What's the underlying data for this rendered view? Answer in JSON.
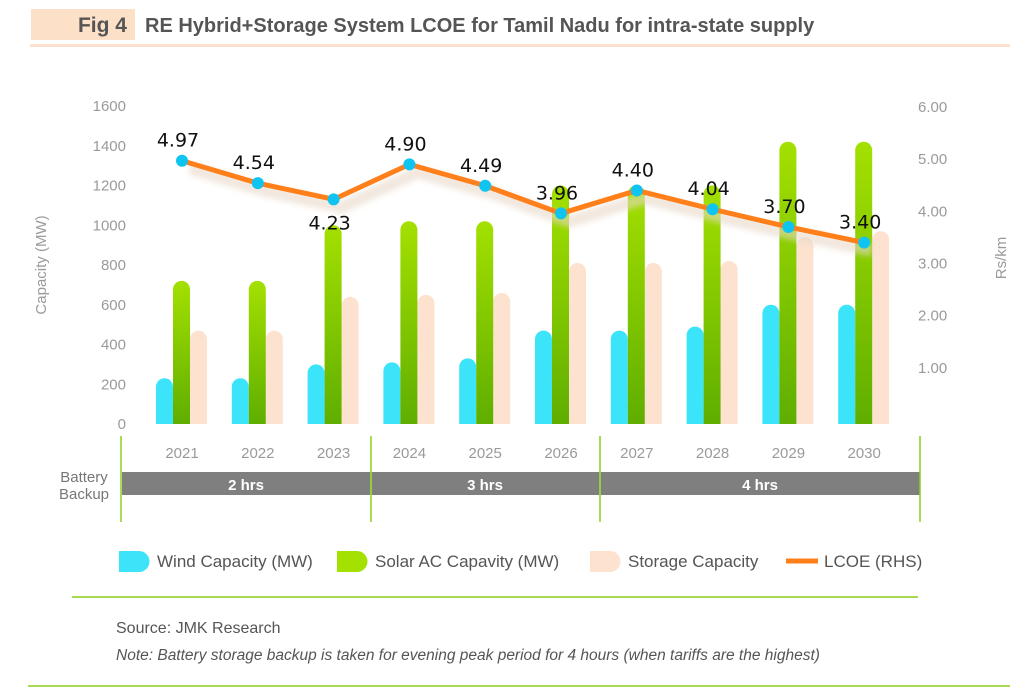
{
  "header": {
    "fig_label": "Fig 4",
    "title": "RE Hybrid+Storage System LCOE for Tamil Nadu for intra-state supply"
  },
  "colors": {
    "wind": "#3be4f8",
    "solar_top": "#a4e000",
    "solar_bottom": "#5fae00",
    "storage": "#fde3cf",
    "lcoe": "#ff7f1a",
    "lcoe_marker": "#10c4f2",
    "accent_green": "#8ccf1a",
    "band": "#7f7f7f",
    "header_peach": "#fde0c8"
  },
  "chart_data": {
    "type": "bar",
    "categories": [
      "2021",
      "2022",
      "2023",
      "2024",
      "2025",
      "2026",
      "2027",
      "2028",
      "2029",
      "2030"
    ],
    "ylabel": "Capacity (MW)",
    "ylabel_right": "Rs/km",
    "ylim": [
      0,
      1600
    ],
    "yticks": [
      "0",
      "200",
      "400",
      "600",
      "800",
      "1000",
      "1200",
      "1400",
      "1600"
    ],
    "ylim_right": [
      0,
      6
    ],
    "yticks_right": [
      "1.00",
      "2.00",
      "3.00",
      "4.00",
      "5.00",
      "6.00"
    ],
    "series": [
      {
        "name": "Wind Capacity (MW)",
        "type": "bar",
        "values": [
          230,
          230,
          300,
          310,
          330,
          470,
          470,
          490,
          600,
          600
        ]
      },
      {
        "name": "Solar AC Capavity (MW)",
        "type": "bar",
        "values": [
          720,
          720,
          1000,
          1020,
          1020,
          1200,
          1200,
          1200,
          1420,
          1420
        ]
      },
      {
        "name": "Storage Capacity",
        "type": "bar",
        "values": [
          470,
          470,
          640,
          650,
          660,
          810,
          810,
          820,
          940,
          970
        ]
      },
      {
        "name": "LCOE (RHS)",
        "type": "line",
        "axis": "right",
        "values": [
          4.97,
          4.54,
          4.23,
          4.9,
          4.49,
          3.96,
          4.4,
          4.04,
          3.7,
          3.4
        ],
        "labels": [
          "4.97",
          "4.54",
          "4.23",
          "4.90",
          "4.49",
          "3.96",
          "4.40",
          "4.04",
          "3.70",
          "3.40"
        ]
      }
    ],
    "battery_backup": {
      "label_line1": "Battery",
      "label_line2": "Backup",
      "segments": [
        "2 hrs",
        "3 hrs",
        "4 hrs"
      ]
    },
    "legend_position": "bottom"
  },
  "footer": {
    "source": "Source: JMK Research",
    "note": "Note: Battery storage backup is taken for evening peak period for 4 hours (when tariffs are the highest)"
  }
}
